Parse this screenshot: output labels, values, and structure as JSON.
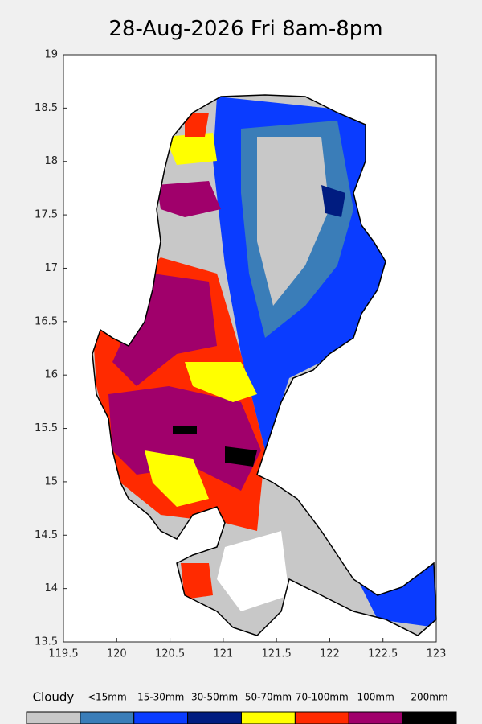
{
  "map": {
    "title": "28-Aug-2026 Fri 8am-8pm",
    "xlim": [
      119.5,
      123
    ],
    "ylim": [
      13.5,
      19
    ],
    "xticks": [
      119.5,
      120,
      120.5,
      121,
      121.5,
      122,
      122.5,
      123
    ],
    "yticks": [
      13.5,
      14,
      14.5,
      15,
      15.5,
      16,
      16.5,
      17,
      17.5,
      18,
      18.5,
      19
    ],
    "legend": [
      {
        "label": "Cloudy",
        "color": "#c8c8c8"
      },
      {
        "label": "<15mm",
        "color": "#3a7db8"
      },
      {
        "label": "15-30mm",
        "color": "#0a3cff"
      },
      {
        "label": "30-50mm",
        "color": "#001c80"
      },
      {
        "label": "50-70mm",
        "color": "#ffff00"
      },
      {
        "label": "70-100mm",
        "color": "#ff2a00"
      },
      {
        "label": "100mm",
        "color": "#a0006b"
      },
      {
        "label": "200mm",
        "color": "#000000"
      }
    ]
  }
}
